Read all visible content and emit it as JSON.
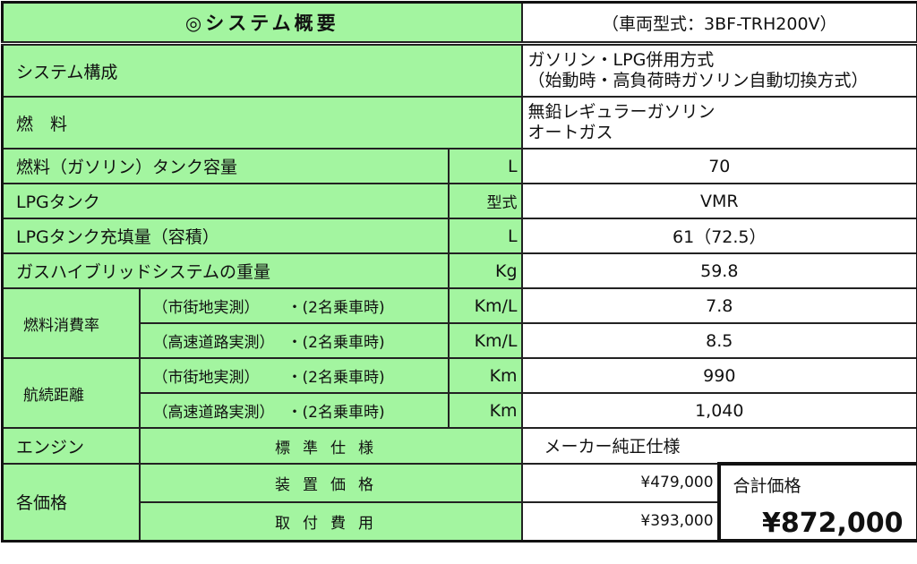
{
  "header": {
    "title": "◎システム概要",
    "model": "（車両型式：3BF-TRH200V）"
  },
  "rows": {
    "system": {
      "label": "システム構成",
      "line1": "ガソリン・LPG併用方式",
      "line2": "（始動時・高負荷時ガソリン自動切換方式）"
    },
    "fuel": {
      "label": "燃　料",
      "line1": "無鉛レギュラーガソリン",
      "line2": "オートガス"
    },
    "gas_tank": {
      "label": "燃料（ガソリン）タンク容量",
      "unit": "L",
      "value": "70"
    },
    "lpg_tank": {
      "label": "LPGタンク",
      "unit": "型式",
      "value": "VMR"
    },
    "lpg_fill": {
      "label": "LPGタンク充填量（容積）",
      "unit": "L",
      "value": "61（72.5）"
    },
    "weight": {
      "label": "ガスハイブリッドシステムの重量",
      "unit": "Kg",
      "value": "59.8"
    },
    "consumption": {
      "label": "燃料消費率",
      "city": "（市街地実測）",
      "highway": "（高速道路実測）",
      "cond": "・(2名乗車時)",
      "unit": "Km/L",
      "city_value": "7.8",
      "highway_value": "8.5"
    },
    "range": {
      "label": "航続距離",
      "city": "（市街地実測）",
      "highway": "（高速道路実測）",
      "cond": "・(2名乗車時)",
      "unit": "Km",
      "city_value": "990",
      "highway_value": "1,040"
    },
    "engine": {
      "label": "エンジン",
      "spec": "標準仕様",
      "value": "メーカー純正仕様"
    },
    "price": {
      "label": "各価格",
      "device": "装置価格",
      "device_value": "¥479,000",
      "install": "取付費用",
      "install_value": "¥393,000",
      "total_label": "合計価格",
      "total_value": "¥872,000"
    }
  },
  "colors": {
    "label_bg": "#a3f5a0",
    "value_bg": "#ffffff"
  }
}
